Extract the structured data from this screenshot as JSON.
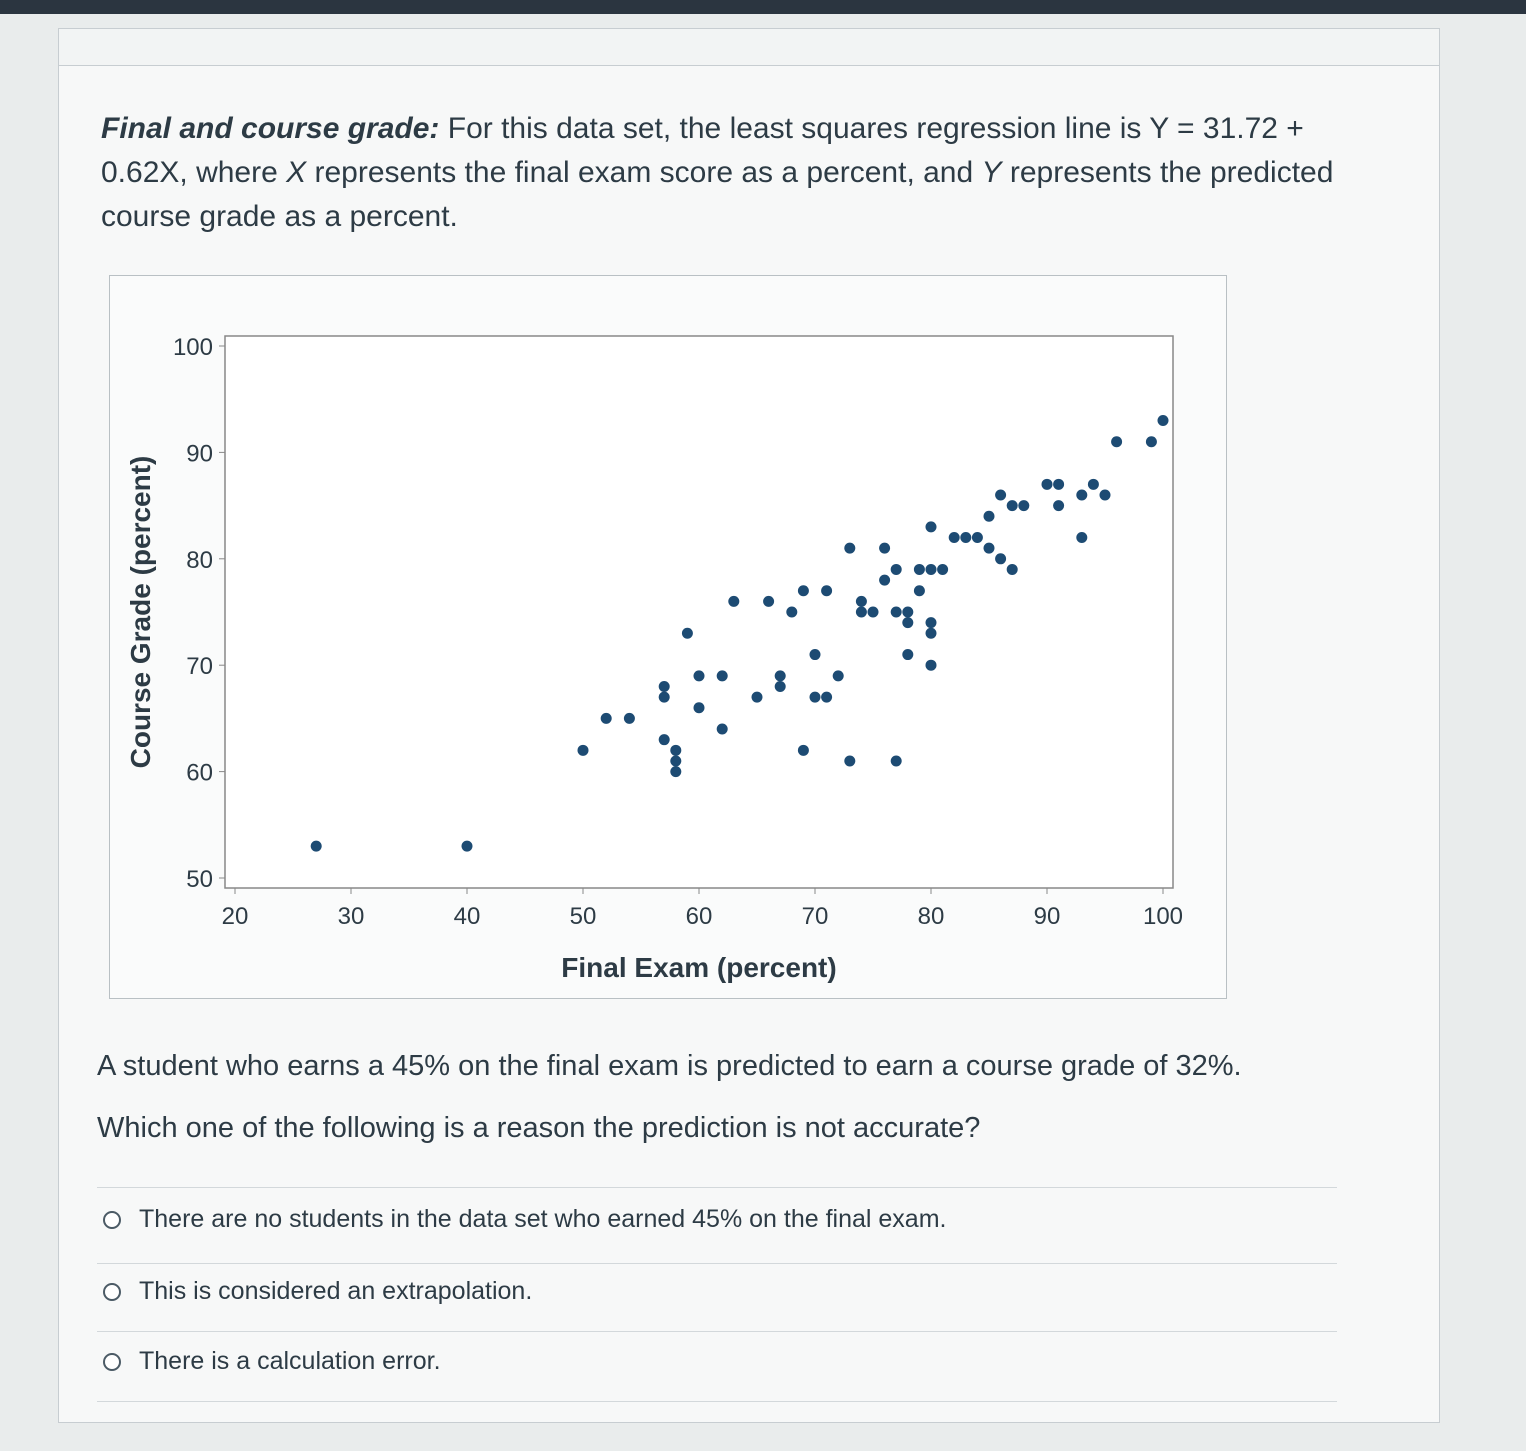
{
  "intro": {
    "lead": "Final and course grade:",
    "text1": " For this data set, the least squares regression line is Y = 31.72 + 0.62X, where ",
    "var_x": "X",
    "text2": " represents the final exam score as a percent, and ",
    "var_y": "Y",
    "text3": " represents the predicted course grade as a percent."
  },
  "question": {
    "line1": "A student who earns a 45% on the final exam is predicted to earn a course grade of 32%.",
    "line2": "Which one of the following is a reason the prediction is not accurate?"
  },
  "options": [
    {
      "label": "There are no students in the data set who earned 45% on the final exam."
    },
    {
      "label": "This is considered an extrapolation."
    },
    {
      "label": "There is a calculation error."
    }
  ],
  "colors": {
    "point": "#1d4b73",
    "axis": "#888888"
  },
  "chart_data": {
    "type": "scatter",
    "title": "",
    "xlabel": "Final Exam (percent)",
    "ylabel": "Course Grade (percent)",
    "xlim": [
      20,
      100
    ],
    "ylim": [
      50,
      100
    ],
    "xticks": [
      20,
      30,
      40,
      50,
      60,
      70,
      80,
      90,
      100
    ],
    "yticks": [
      50,
      60,
      70,
      80,
      90,
      100
    ],
    "grid": false,
    "series": [
      {
        "points": [
          [
            27,
            53
          ],
          [
            40,
            53
          ],
          [
            50,
            62
          ],
          [
            52,
            65
          ],
          [
            54,
            65
          ],
          [
            57,
            63
          ],
          [
            58,
            61
          ],
          [
            58,
            62
          ],
          [
            58,
            60
          ],
          [
            57,
            67
          ],
          [
            57,
            68
          ],
          [
            59,
            73
          ],
          [
            60,
            69
          ],
          [
            60,
            66
          ],
          [
            62,
            69
          ],
          [
            62,
            64
          ],
          [
            63,
            76
          ],
          [
            65,
            67
          ],
          [
            66,
            76
          ],
          [
            67,
            68
          ],
          [
            67,
            69
          ],
          [
            68,
            75
          ],
          [
            69,
            77
          ],
          [
            69,
            62
          ],
          [
            70,
            71
          ],
          [
            70,
            67
          ],
          [
            71,
            67
          ],
          [
            71,
            77
          ],
          [
            72,
            69
          ],
          [
            73,
            61
          ],
          [
            73,
            81
          ],
          [
            74,
            76
          ],
          [
            74,
            75
          ],
          [
            75,
            75
          ],
          [
            76,
            81
          ],
          [
            76,
            78
          ],
          [
            77,
            79
          ],
          [
            77,
            61
          ],
          [
            77,
            75
          ],
          [
            78,
            71
          ],
          [
            78,
            75
          ],
          [
            78,
            74
          ],
          [
            79,
            77
          ],
          [
            79,
            79
          ],
          [
            80,
            79
          ],
          [
            80,
            83
          ],
          [
            80,
            74
          ],
          [
            80,
            73
          ],
          [
            80,
            70
          ],
          [
            81,
            79
          ],
          [
            82,
            82
          ],
          [
            83,
            82
          ],
          [
            84,
            82
          ],
          [
            85,
            84
          ],
          [
            85,
            81
          ],
          [
            86,
            86
          ],
          [
            86,
            80
          ],
          [
            87,
            79
          ],
          [
            87,
            85
          ],
          [
            88,
            85
          ],
          [
            90,
            87
          ],
          [
            91,
            87
          ],
          [
            91,
            85
          ],
          [
            93,
            86
          ],
          [
            93,
            82
          ],
          [
            94,
            87
          ],
          [
            95,
            86
          ],
          [
            96,
            91
          ],
          [
            99,
            91
          ],
          [
            100,
            93
          ]
        ]
      }
    ]
  }
}
